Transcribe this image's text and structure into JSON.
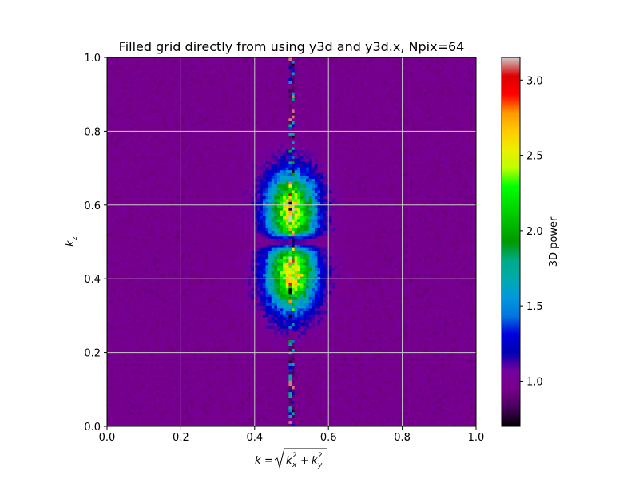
{
  "chart_data": {
    "type": "heatmap",
    "title": "Filled grid directly from using y3d and y3d.x, Npix=64",
    "xlabel": "k = sqrt(k_x^2 + k_y^2)",
    "xlabel_parts": {
      "lhs": "k",
      "eq": "=",
      "k": "k",
      "sub_x": "x",
      "sub_y": "y",
      "sup": "2",
      "plus": "+"
    },
    "ylabel": "k_z",
    "ylabel_parts": {
      "k": "k",
      "sub": "z"
    },
    "xlim": [
      0.0,
      1.0
    ],
    "ylim": [
      0.0,
      1.0
    ],
    "x_ticks": [
      0.0,
      0.2,
      0.4,
      0.6,
      0.8,
      1.0
    ],
    "x_tick_labels": [
      "0.0",
      "0.2",
      "0.4",
      "0.6",
      "0.8",
      "1.0"
    ],
    "y_ticks": [
      0.0,
      0.2,
      0.4,
      0.6,
      0.8,
      1.0
    ],
    "y_tick_labels": [
      "0.0",
      "0.2",
      "0.4",
      "0.6",
      "0.8",
      "1.0"
    ],
    "grid": true,
    "grid_color": "#cccccc",
    "colormap": "nipy_spectral",
    "colorbar": {
      "label": "3D power",
      "vmin": 0.7,
      "vmax": 3.15,
      "ticks": [
        1.0,
        1.5,
        2.0,
        2.5,
        3.0
      ],
      "tick_labels": [
        "1.0",
        "1.5",
        "2.0",
        "2.5",
        "3.0"
      ]
    },
    "grid_resolution": 128,
    "structure": {
      "background_power": 0.98,
      "center_k": 0.5,
      "minimum_kz": 0.5,
      "lobe_centers_kz": [
        0.41,
        0.59
      ],
      "lobe_peak_power": 2.45,
      "spike_column_k": 0.5,
      "spike_peak_power": 3.1
    }
  }
}
